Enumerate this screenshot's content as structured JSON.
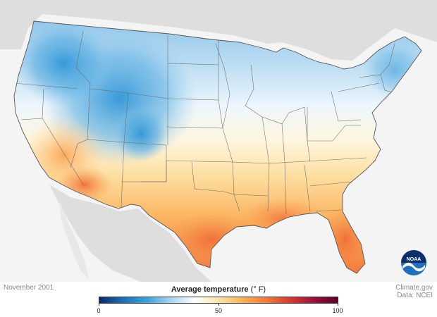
{
  "map": {
    "date": "November 2001",
    "credit_line1": "Climate.gov",
    "credit_line2": "Data: NCEI",
    "logo_text": "NOAA"
  },
  "legend": {
    "title": "Average temperature",
    "unit": "(° F)",
    "ticks": [
      "0",
      "50",
      "100"
    ],
    "range": [
      0,
      100
    ],
    "colors": [
      "#0b2b6b",
      "#1d6fb8",
      "#3aa3de",
      "#a9d4ef",
      "#ffffff",
      "#fde3a6",
      "#fbb25a",
      "#f07c3a",
      "#d93a33",
      "#9b0f3a",
      "#5a0028"
    ]
  },
  "colors": {
    "land_neutral": "#dedede",
    "ocean": "#f4f4f4",
    "state_border": "#6a6a6a",
    "noaa_blue": "#1f6fc0",
    "noaa_navy": "#0b2f6b"
  }
}
